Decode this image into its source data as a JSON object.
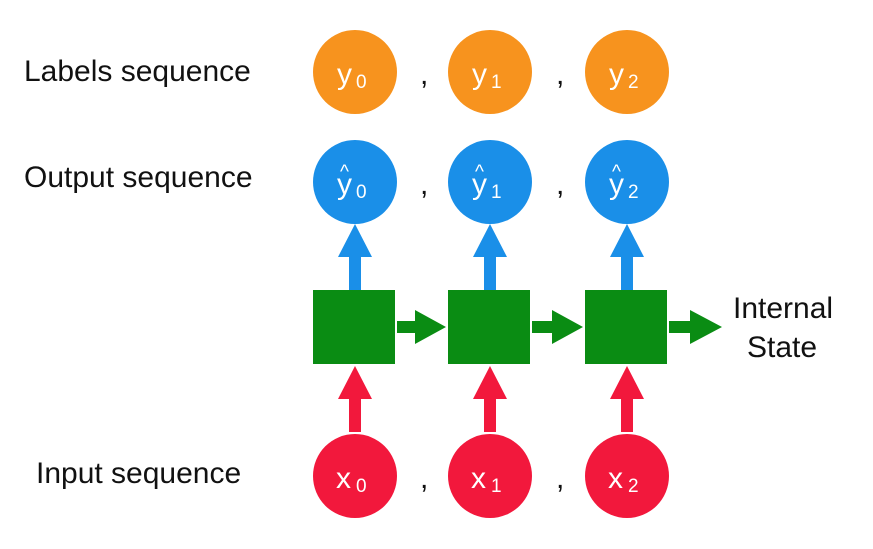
{
  "labels": {
    "labels_row": "Labels sequence",
    "output_row": "Output sequence",
    "input_row": "Input sequence",
    "state_line1": "Internal",
    "state_line2": "State"
  },
  "separator": ",",
  "hat_mark": "^",
  "labels_sequence": [
    {
      "symbol": "y",
      "sub": "0"
    },
    {
      "symbol": "y",
      "sub": "1"
    },
    {
      "symbol": "y",
      "sub": "2"
    }
  ],
  "output_sequence": [
    {
      "symbol": "y",
      "sub": "0"
    },
    {
      "symbol": "y",
      "sub": "1"
    },
    {
      "symbol": "y",
      "sub": "2"
    }
  ],
  "input_sequence": [
    {
      "symbol": "x",
      "sub": "0"
    },
    {
      "symbol": "x",
      "sub": "1"
    },
    {
      "symbol": "x",
      "sub": "2"
    }
  ],
  "colors": {
    "label_node": "#f7931e",
    "output_node": "#1a8fe8",
    "input_node": "#f2183c",
    "cell": "#0a8c13",
    "output_arrow": "#1a8fe8",
    "input_arrow": "#f2183c",
    "state_arrow": "#0a8c13",
    "text": "#111111"
  }
}
